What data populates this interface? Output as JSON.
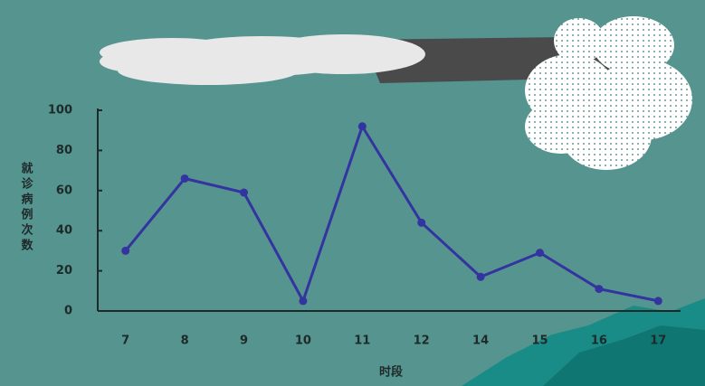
{
  "chart_data": {
    "type": "line",
    "y_label": "就诊病例次数",
    "x_label": "时段",
    "categories": [
      "7",
      "8",
      "9",
      "10",
      "11",
      "12",
      "14",
      "15",
      "16",
      "17"
    ],
    "values": [
      30,
      66,
      59,
      5,
      92,
      44,
      17,
      29,
      11,
      5
    ],
    "color": "#3434a0",
    "ylim": [
      0,
      100
    ],
    "yticks": [
      0,
      20,
      40,
      60,
      80,
      100
    ],
    "grid": false
  }
}
